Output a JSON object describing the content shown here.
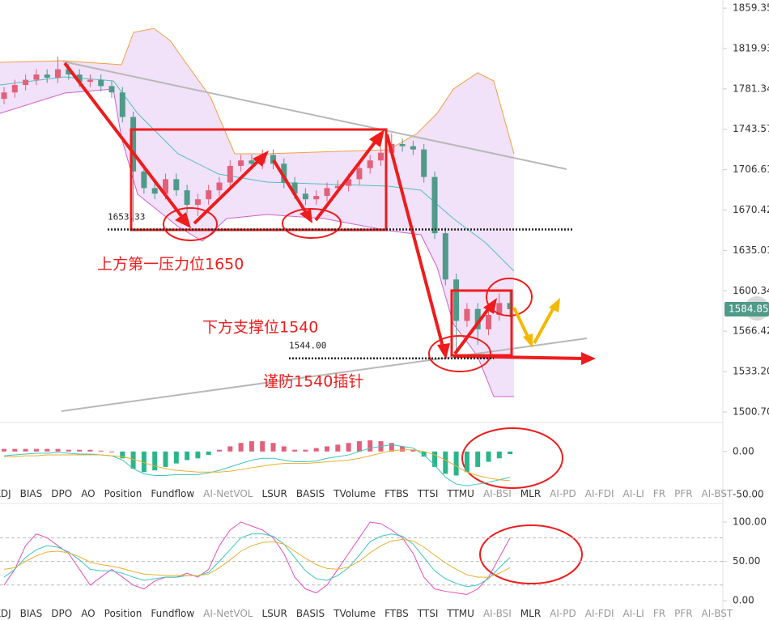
{
  "chart_data": [
    {
      "type": "candlestick",
      "log_scale": true,
      "ylim": [
        1493.6,
        1867.4
      ],
      "yticks": [
        1859.35,
        1819.93,
        1781.34,
        1743.57,
        1706.61,
        1670.42,
        1635.01,
        1600.34,
        1566.42,
        {
          "value": 1533.2,
          "label": "1533.20"
        },
        {
          "value": 1500.7,
          "label": "1500.70"
        }
      ],
      "up_color": "#e2607a",
      "down_color": "#4f9a88",
      "open": [
        1772,
        1778,
        1785,
        1790,
        1795,
        1792,
        1800,
        1795,
        1788,
        1790,
        1784,
        1778,
        1755,
        1705,
        1690,
        1685,
        1698,
        1688,
        1675,
        1680,
        1688,
        1695,
        1710,
        1715,
        1712,
        1720,
        1712,
        1695,
        1685,
        1680,
        1683,
        1690,
        1692,
        1698,
        1708,
        1715,
        1722,
        1730,
        1728,
        1725,
        1700,
        1650,
        1610,
        1575,
        1585,
        1568,
        1580,
        1590
      ],
      "high": [
        1783,
        1790,
        1795,
        1800,
        1800,
        1812,
        1805,
        1800,
        1795,
        1795,
        1789,
        1783,
        1760,
        1710,
        1695,
        1703,
        1703,
        1693,
        1685,
        1693,
        1700,
        1715,
        1720,
        1720,
        1725,
        1725,
        1717,
        1700,
        1690,
        1688,
        1695,
        1697,
        1703,
        1713,
        1720,
        1727,
        1740,
        1735,
        1733,
        1730,
        1705,
        1655,
        1615,
        1590,
        1590,
        1585,
        1598,
        1600
      ],
      "low": [
        1767,
        1773,
        1780,
        1785,
        1787,
        1787,
        1790,
        1783,
        1783,
        1779,
        1773,
        1750,
        1660,
        1685,
        1680,
        1680,
        1683,
        1668,
        1665,
        1675,
        1683,
        1690,
        1705,
        1707,
        1707,
        1707,
        1690,
        1680,
        1675,
        1675,
        1678,
        1685,
        1687,
        1693,
        1703,
        1710,
        1717,
        1723,
        1720,
        1695,
        1645,
        1605,
        1548,
        1570,
        1555,
        1563,
        1575,
        1578
      ],
      "close": [
        1778,
        1785,
        1790,
        1795,
        1792,
        1800,
        1795,
        1788,
        1790,
        1784,
        1778,
        1755,
        1705,
        1690,
        1685,
        1698,
        1688,
        1675,
        1680,
        1688,
        1695,
        1710,
        1715,
        1712,
        1720,
        1712,
        1695,
        1685,
        1680,
        1683,
        1690,
        1692,
        1698,
        1708,
        1715,
        1722,
        1730,
        1728,
        1725,
        1700,
        1650,
        1610,
        1575,
        1585,
        1568,
        1580,
        1590,
        1584.85
      ],
      "last_price": 1584.85,
      "levels": [
        {
          "value": 1653.33,
          "label": "1653.33"
        },
        {
          "value": 1544,
          "label": "1544.00"
        }
      ],
      "annotations": [
        "上方第一压力位1650",
        "下方支撑位1540",
        "谨防1540插针"
      ]
    },
    {
      "type": "macd",
      "ylim": [
        -54,
        31
      ],
      "yticks": [
        {
          "value": 0,
          "label": "0.00"
        },
        {
          "value": -50,
          "label": "-50.00"
        }
      ],
      "histogram": {
        "up_color": "#e2607a",
        "down_color": "#2bb58a",
        "values": [
          3,
          3,
          3,
          3,
          3,
          3,
          2,
          2,
          2,
          1,
          0,
          -8,
          -20,
          -24,
          -22,
          -18,
          -14,
          -10,
          -8,
          -4,
          2,
          6,
          10,
          12,
          12,
          10,
          6,
          2,
          2,
          4,
          6,
          8,
          10,
          12,
          13,
          12,
          10,
          6,
          2,
          -6,
          -18,
          -26,
          -28,
          -24,
          -18,
          -12,
          -8,
          -3
        ]
      },
      "series": [
        {
          "color": "#3cc5c0",
          "values": [
            -5,
            -4,
            -3,
            -2,
            -2,
            -1,
            -2,
            -3,
            -3,
            -4,
            -5,
            -10,
            -20,
            -26,
            -28,
            -28,
            -27,
            -27,
            -27,
            -25,
            -22,
            -18,
            -14,
            -10,
            -8,
            -8,
            -10,
            -12,
            -12,
            -11,
            -8,
            -6,
            -4,
            0,
            4,
            6,
            8,
            6,
            4,
            -4,
            -16,
            -30,
            -38,
            -40,
            -38,
            -36,
            -33,
            -30
          ]
        },
        {
          "color": "#e8b030",
          "values": [
            -6,
            -6,
            -5,
            -5,
            -4,
            -4,
            -4,
            -4,
            -4,
            -4,
            -5,
            -6,
            -9,
            -13,
            -17,
            -20,
            -22,
            -23,
            -24,
            -24,
            -24,
            -23,
            -21,
            -19,
            -17,
            -15,
            -14,
            -14,
            -14,
            -13,
            -12,
            -11,
            -10,
            -8,
            -5,
            -2,
            1,
            2,
            2,
            0,
            -4,
            -10,
            -17,
            -24,
            -28,
            -31,
            -33,
            -34
          ]
        }
      ]
    },
    {
      "type": "line",
      "ylim": [
        -8,
        120.6
      ],
      "yticks": [
        {
          "value": 100,
          "label": "100.00"
        },
        {
          "value": 50,
          "label": "50.00"
        },
        {
          "value": 0,
          "label": "0.00"
        }
      ],
      "reference_lines": [
        80,
        50,
        20
      ],
      "series": [
        {
          "color": "#e050c0",
          "values": [
            20,
            40,
            70,
            85,
            80,
            70,
            60,
            40,
            20,
            30,
            40,
            30,
            20,
            15,
            25,
            30,
            30,
            35,
            30,
            40,
            70,
            90,
            100,
            95,
            90,
            80,
            60,
            30,
            15,
            10,
            20,
            40,
            60,
            80,
            100,
            98,
            90,
            80,
            60,
            30,
            15,
            12,
            10,
            8,
            15,
            30,
            55,
            80
          ]
        },
        {
          "color": "#3cc5c0",
          "values": [
            30,
            40,
            55,
            65,
            70,
            68,
            62,
            52,
            40,
            38,
            38,
            35,
            30,
            26,
            28,
            30,
            30,
            32,
            32,
            36,
            50,
            65,
            80,
            85,
            85,
            82,
            72,
            55,
            38,
            28,
            26,
            32,
            42,
            58,
            75,
            82,
            85,
            82,
            72,
            55,
            38,
            28,
            22,
            18,
            20,
            28,
            42,
            55
          ]
        },
        {
          "color": "#e8b030",
          "values": [
            40,
            42,
            50,
            57,
            62,
            63,
            61,
            56,
            49,
            46,
            44,
            41,
            37,
            34,
            33,
            32,
            32,
            32,
            32,
            34,
            42,
            52,
            63,
            70,
            74,
            75,
            72,
            63,
            54,
            46,
            41,
            40,
            43,
            50,
            61,
            70,
            76,
            78,
            76,
            68,
            58,
            48,
            40,
            33,
            30,
            30,
            35,
            42
          ]
        }
      ]
    }
  ],
  "tabs": [
    {
      "label": "KDJ",
      "color": "#333333"
    },
    {
      "label": "BIAS",
      "color": "#333333"
    },
    {
      "label": "DPO",
      "color": "#333333"
    },
    {
      "label": "AO",
      "color": "#333333"
    },
    {
      "label": "Position",
      "color": "#333333"
    },
    {
      "label": "Fundflow",
      "color": "#333333"
    },
    {
      "label": "AI-NetVOL",
      "color": "#999999"
    },
    {
      "label": "LSUR",
      "color": "#333333"
    },
    {
      "label": "BASIS",
      "color": "#333333"
    },
    {
      "label": "TVolume",
      "color": "#333333"
    },
    {
      "label": "FTBS",
      "color": "#333333"
    },
    {
      "label": "TTSI",
      "color": "#333333"
    },
    {
      "label": "TTMU",
      "color": "#333333"
    },
    {
      "label": "AI-BSI",
      "color": "#999999"
    },
    {
      "label": "MLR",
      "color": "#333333"
    },
    {
      "label": "AI-PD",
      "color": "#999999"
    },
    {
      "label": "AI-FDI",
      "color": "#999999"
    },
    {
      "label": "AI-LI",
      "color": "#999999"
    },
    {
      "label": "FR",
      "color": "#999999"
    },
    {
      "label": "PFR",
      "color": "#999999"
    },
    {
      "label": "AI-BST",
      "color": "#999999"
    }
  ]
}
